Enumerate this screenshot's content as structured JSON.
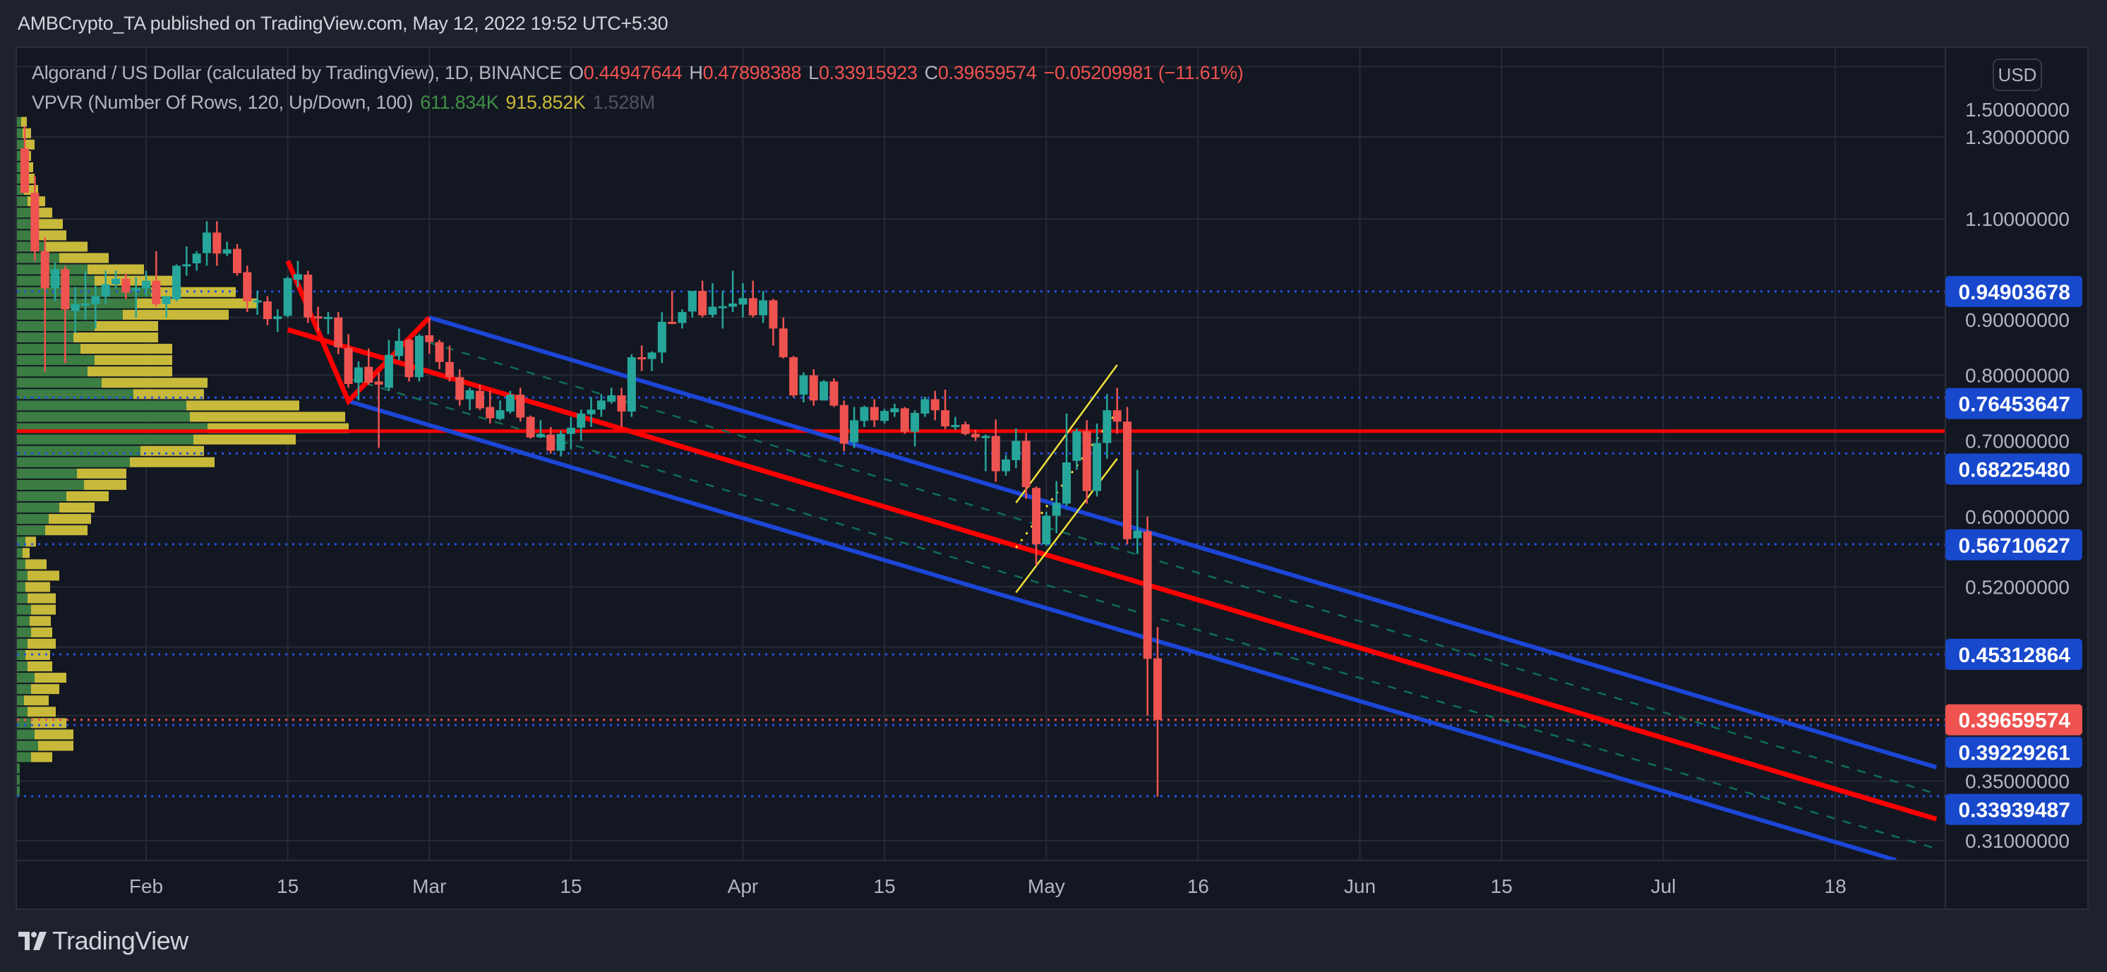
{
  "header": {
    "published": "AMBCrypto_TA published on TradingView.com, May 12, 2022 19:52 UTC+5:30"
  },
  "legend": {
    "symbol": "Algorand / US Dollar (calculated by TradingView), 1D, BINANCE",
    "o_label": "O",
    "o": "0.44947644",
    "h_label": "H",
    "h": "0.47898388",
    "l_label": "L",
    "l": "0.33915923",
    "c_label": "C",
    "c": "0.39659574",
    "change": "−0.05209981 (−11.61%)",
    "vpvr": "VPVR (Number Of Rows, 120, Up/Down, 100)",
    "vpvr_up": "611.834K",
    "vpvr_down": "915.852K",
    "vpvr_total": "1.528M"
  },
  "price_axis": {
    "currency_button": "USD"
  },
  "footer": {
    "logo": "TradingView"
  },
  "colors": {
    "background": "#131722",
    "grid": "#262a35",
    "up": "#26a69a",
    "down": "#ef5350",
    "vp_up": "#3b7d43",
    "vp_down": "#c8b93a",
    "channel": "#1c46d6",
    "median": "#ff0000",
    "inner": "#0e6e55",
    "rising_channel": "#f2e33a",
    "level": "#2453e0",
    "badge": "#1848cc",
    "badge_last": "#ef5350"
  },
  "chart_data": {
    "type": "candlestick",
    "scale": "log",
    "interval": "1D",
    "ylim": [
      0.29,
      1.56
    ],
    "xlim": [
      "2022-01-19",
      "2022-07-28"
    ],
    "y_ticks": [
      {
        "value": 1.5,
        "label": "1.50000000"
      },
      {
        "value": 1.3,
        "label": "1.30000000"
      },
      {
        "value": 1.1,
        "label": "1.10000000"
      },
      {
        "value": 0.9,
        "label": "0.90000000"
      },
      {
        "value": 0.8,
        "label": "0.80000000"
      },
      {
        "value": 0.7,
        "label": "0.70000000"
      },
      {
        "value": 0.6,
        "label": "0.60000000"
      },
      {
        "value": 0.52,
        "label": "0.52000000"
      },
      {
        "value": 0.35,
        "label": "0.35000000"
      },
      {
        "value": 0.31,
        "label": "0.31000000"
      }
    ],
    "y_grid_extra": [
      0.46,
      0.4
    ],
    "x_ticks": [
      {
        "date": "2022-02-01",
        "label": "Feb"
      },
      {
        "date": "2022-02-15",
        "label": "15"
      },
      {
        "date": "2022-03-01",
        "label": "Mar"
      },
      {
        "date": "2022-03-15",
        "label": "15"
      },
      {
        "date": "2022-04-01",
        "label": "Apr"
      },
      {
        "date": "2022-04-15",
        "label": "15"
      },
      {
        "date": "2022-05-01",
        "label": "May"
      },
      {
        "date": "2022-05-16",
        "label": "16"
      },
      {
        "date": "2022-06-01",
        "label": "Jun"
      },
      {
        "date": "2022-06-15",
        "label": "15"
      },
      {
        "date": "2022-07-01",
        "label": "Jul"
      },
      {
        "date": "2022-07-18",
        "label": "18"
      }
    ],
    "candles_columns": [
      "date",
      "open",
      "high",
      "low",
      "close"
    ],
    "candles": [
      [
        "2022-01-20",
        1.27,
        1.33,
        1.16,
        1.16
      ],
      [
        "2022-01-21",
        1.16,
        1.2,
        1.01,
        1.03
      ],
      [
        "2022-01-22",
        1.03,
        1.06,
        0.806,
        0.955
      ],
      [
        "2022-01-23",
        0.955,
        1.006,
        0.93,
        0.993
      ],
      [
        "2022-01-24",
        0.993,
        1.0,
        0.82,
        0.915
      ],
      [
        "2022-01-25",
        0.912,
        0.958,
        0.872,
        0.925
      ],
      [
        "2022-01-26",
        0.922,
        0.99,
        0.895,
        0.926
      ],
      [
        "2022-01-27",
        0.925,
        0.96,
        0.88,
        0.94
      ],
      [
        "2022-01-28",
        0.939,
        0.99,
        0.925,
        0.963
      ],
      [
        "2022-01-29",
        0.963,
        0.99,
        0.955,
        0.974
      ],
      [
        "2022-01-30",
        0.974,
        0.985,
        0.935,
        0.947
      ],
      [
        "2022-01-31",
        0.952,
        0.977,
        0.9,
        0.955
      ],
      [
        "2022-02-01",
        0.955,
        0.99,
        0.94,
        0.97
      ],
      [
        "2022-02-02",
        0.97,
        1.03,
        0.92,
        0.925
      ],
      [
        "2022-02-03",
        0.925,
        0.94,
        0.9,
        0.94
      ],
      [
        "2022-02-04",
        0.934,
        1.003,
        0.93,
        1.0
      ],
      [
        "2022-02-05",
        1.0,
        1.04,
        0.98,
        1.003
      ],
      [
        "2022-02-06",
        1.005,
        1.03,
        0.99,
        1.025
      ],
      [
        "2022-02-07",
        1.026,
        1.095,
        1.0,
        1.07
      ],
      [
        "2022-02-08",
        1.07,
        1.095,
        1.0,
        1.025
      ],
      [
        "2022-02-09",
        1.025,
        1.05,
        1.02,
        1.034
      ],
      [
        "2022-02-10",
        1.035,
        1.045,
        0.98,
        0.985
      ],
      [
        "2022-02-11",
        0.987,
        1.0,
        0.91,
        0.93
      ],
      [
        "2022-02-12",
        0.928,
        0.95,
        0.905,
        0.932
      ],
      [
        "2022-02-13",
        0.93,
        0.94,
        0.886,
        0.897
      ],
      [
        "2022-02-14",
        0.897,
        0.915,
        0.874,
        0.902
      ],
      [
        "2022-02-15",
        0.903,
        0.978,
        0.9,
        0.975
      ],
      [
        "2022-02-16",
        0.972,
        1.01,
        0.957,
        0.983
      ],
      [
        "2022-02-17",
        0.982,
        0.99,
        0.89,
        0.9
      ],
      [
        "2022-02-18",
        0.902,
        0.92,
        0.875,
        0.899
      ],
      [
        "2022-02-19",
        0.898,
        0.91,
        0.87,
        0.901
      ],
      [
        "2022-02-20",
        0.9,
        0.91,
        0.835,
        0.847
      ],
      [
        "2022-02-21",
        0.846,
        0.87,
        0.78,
        0.786
      ],
      [
        "2022-02-22",
        0.788,
        0.823,
        0.76,
        0.813
      ],
      [
        "2022-02-23",
        0.814,
        0.845,
        0.785,
        0.788
      ],
      [
        "2022-02-24",
        0.79,
        0.805,
        0.69,
        0.785
      ],
      [
        "2022-02-25",
        0.78,
        0.86,
        0.775,
        0.834
      ],
      [
        "2022-02-26",
        0.832,
        0.88,
        0.825,
        0.858
      ],
      [
        "2022-02-27",
        0.86,
        0.862,
        0.79,
        0.797
      ],
      [
        "2022-02-28",
        0.797,
        0.87,
        0.79,
        0.867
      ],
      [
        "2022-03-01",
        0.868,
        0.9,
        0.836,
        0.856
      ],
      [
        "2022-03-02",
        0.856,
        0.86,
        0.81,
        0.822
      ],
      [
        "2022-03-03",
        0.822,
        0.85,
        0.79,
        0.797
      ],
      [
        "2022-03-04",
        0.797,
        0.81,
        0.752,
        0.761
      ],
      [
        "2022-03-05",
        0.762,
        0.78,
        0.745,
        0.776
      ],
      [
        "2022-03-06",
        0.775,
        0.785,
        0.745,
        0.748
      ],
      [
        "2022-03-07",
        0.75,
        0.775,
        0.725,
        0.733
      ],
      [
        "2022-03-08",
        0.732,
        0.76,
        0.73,
        0.745
      ],
      [
        "2022-03-09",
        0.743,
        0.775,
        0.74,
        0.769
      ],
      [
        "2022-03-10",
        0.769,
        0.78,
        0.728,
        0.734
      ],
      [
        "2022-03-11",
        0.735,
        0.737,
        0.703,
        0.705
      ],
      [
        "2022-03-12",
        0.705,
        0.73,
        0.704,
        0.71
      ],
      [
        "2022-03-13",
        0.709,
        0.72,
        0.682,
        0.686
      ],
      [
        "2022-03-14",
        0.686,
        0.715,
        0.678,
        0.71
      ],
      [
        "2022-03-15",
        0.71,
        0.735,
        0.688,
        0.719
      ],
      [
        "2022-03-16",
        0.719,
        0.746,
        0.7,
        0.74
      ],
      [
        "2022-03-17",
        0.739,
        0.765,
        0.72,
        0.746
      ],
      [
        "2022-03-18",
        0.746,
        0.77,
        0.735,
        0.76
      ],
      [
        "2022-03-19",
        0.758,
        0.78,
        0.755,
        0.768
      ],
      [
        "2022-03-20",
        0.768,
        0.78,
        0.72,
        0.743
      ],
      [
        "2022-03-21",
        0.743,
        0.835,
        0.735,
        0.83
      ],
      [
        "2022-03-22",
        0.83,
        0.85,
        0.807,
        0.828
      ],
      [
        "2022-03-23",
        0.827,
        0.84,
        0.807,
        0.838
      ],
      [
        "2022-03-24",
        0.838,
        0.91,
        0.82,
        0.892
      ],
      [
        "2022-03-25",
        0.892,
        0.95,
        0.888,
        0.89
      ],
      [
        "2022-03-26",
        0.89,
        0.915,
        0.88,
        0.91
      ],
      [
        "2022-03-27",
        0.911,
        0.95,
        0.9,
        0.95
      ],
      [
        "2022-03-28",
        0.95,
        0.97,
        0.9,
        0.904
      ],
      [
        "2022-03-29",
        0.905,
        0.965,
        0.9,
        0.92
      ],
      [
        "2022-03-30",
        0.919,
        0.95,
        0.88,
        0.921
      ],
      [
        "2022-03-31",
        0.92,
        0.99,
        0.91,
        0.926
      ],
      [
        "2022-04-01",
        0.924,
        0.965,
        0.9,
        0.936
      ],
      [
        "2022-04-02",
        0.936,
        0.97,
        0.9,
        0.904
      ],
      [
        "2022-04-03",
        0.904,
        0.95,
        0.89,
        0.932
      ],
      [
        "2022-04-04",
        0.932,
        0.935,
        0.85,
        0.88
      ],
      [
        "2022-04-05",
        0.88,
        0.9,
        0.828,
        0.83
      ],
      [
        "2022-04-06",
        0.83,
        0.832,
        0.765,
        0.768
      ],
      [
        "2022-04-07",
        0.769,
        0.805,
        0.757,
        0.8
      ],
      [
        "2022-04-08",
        0.8,
        0.81,
        0.752,
        0.76
      ],
      [
        "2022-04-09",
        0.76,
        0.792,
        0.76,
        0.79
      ],
      [
        "2022-04-10",
        0.79,
        0.795,
        0.75,
        0.752
      ],
      [
        "2022-04-11",
        0.753,
        0.76,
        0.685,
        0.696
      ],
      [
        "2022-04-12",
        0.698,
        0.75,
        0.69,
        0.73
      ],
      [
        "2022-04-13",
        0.729,
        0.752,
        0.72,
        0.75
      ],
      [
        "2022-04-14",
        0.75,
        0.762,
        0.72,
        0.73
      ],
      [
        "2022-04-15",
        0.729,
        0.747,
        0.725,
        0.744
      ],
      [
        "2022-04-16",
        0.742,
        0.755,
        0.735,
        0.748
      ],
      [
        "2022-04-17",
        0.748,
        0.75,
        0.71,
        0.713
      ],
      [
        "2022-04-18",
        0.713,
        0.745,
        0.692,
        0.741
      ],
      [
        "2022-04-19",
        0.74,
        0.766,
        0.735,
        0.762
      ],
      [
        "2022-04-20",
        0.762,
        0.775,
        0.73,
        0.745
      ],
      [
        "2022-04-21",
        0.745,
        0.777,
        0.717,
        0.721
      ],
      [
        "2022-04-22",
        0.722,
        0.735,
        0.716,
        0.723
      ],
      [
        "2022-04-23",
        0.724,
        0.728,
        0.708,
        0.71
      ],
      [
        "2022-04-24",
        0.71,
        0.716,
        0.7,
        0.705
      ],
      [
        "2022-04-25",
        0.706,
        0.709,
        0.658,
        0.707
      ],
      [
        "2022-04-26",
        0.707,
        0.731,
        0.644,
        0.658
      ],
      [
        "2022-04-27",
        0.658,
        0.68,
        0.652,
        0.674
      ],
      [
        "2022-04-28",
        0.673,
        0.718,
        0.662,
        0.7
      ],
      [
        "2022-04-29",
        0.7,
        0.712,
        0.622,
        0.637
      ],
      [
        "2022-04-30",
        0.636,
        0.638,
        0.543,
        0.567
      ],
      [
        "2022-05-01",
        0.567,
        0.606,
        0.565,
        0.601
      ],
      [
        "2022-05-02",
        0.601,
        0.645,
        0.58,
        0.617
      ],
      [
        "2022-05-03",
        0.616,
        0.74,
        0.613,
        0.67
      ],
      [
        "2022-05-04",
        0.672,
        0.718,
        0.66,
        0.714
      ],
      [
        "2022-05-05",
        0.714,
        0.73,
        0.616,
        0.632
      ],
      [
        "2022-05-06",
        0.632,
        0.725,
        0.625,
        0.697
      ],
      [
        "2022-05-07",
        0.697,
        0.77,
        0.675,
        0.745
      ],
      [
        "2022-05-08",
        0.745,
        0.78,
        0.71,
        0.728
      ],
      [
        "2022-05-09",
        0.728,
        0.75,
        0.567,
        0.573
      ],
      [
        "2022-05-10",
        0.574,
        0.66,
        0.556,
        0.583
      ],
      [
        "2022-05-11",
        0.582,
        0.6,
        0.4,
        0.449
      ],
      [
        "2022-05-12",
        0.44947644,
        0.47898388,
        0.33915923,
        0.39659574
      ]
    ],
    "volume_profile": {
      "rows_shown": 60,
      "price_low": 0.339,
      "price_high": 1.356,
      "up": [
        4,
        4,
        4,
        20,
        30,
        25,
        20,
        15,
        10,
        20,
        25,
        15,
        12,
        15,
        20,
        18,
        20,
        15,
        12,
        15,
        12,
        8,
        12,
        40,
        45,
        60,
        70,
        95,
        85,
        160,
        175,
        250,
        270,
        245,
        240,
        165,
        120,
        100,
        110,
        90,
        80,
        110,
        150,
        170,
        190,
        110,
        100,
        60,
        40,
        30,
        25,
        20,
        15,
        10,
        10,
        8,
        8,
        10,
        8,
        6
      ],
      "down": [
        0,
        0,
        0,
        30,
        50,
        55,
        50,
        40,
        35,
        40,
        45,
        35,
        35,
        40,
        30,
        30,
        35,
        40,
        35,
        45,
        30,
        10,
        15,
        60,
        60,
        50,
        60,
        60,
        70,
        120,
        90,
        145,
        200,
        220,
        160,
        100,
        150,
        120,
        110,
        130,
        120,
        90,
        150,
        170,
        120,
        120,
        80,
        70,
        60,
        40,
        40,
        30,
        25,
        20,
        15,
        15,
        12,
        15,
        12,
        8
      ]
    },
    "drawings": {
      "pitchfork_handle": [
        [
          "2022-02-15",
          1.01
        ],
        [
          "2022-02-21",
          0.759
        ],
        [
          "2022-03-01",
          0.9
        ]
      ],
      "median_line": [
        [
          "2022-02-15",
          0.878
        ],
        [
          "2022-07-28",
          0.324
        ]
      ],
      "upper_channel": [
        [
          "2022-03-01",
          0.9
        ],
        [
          "2022-07-28",
          0.36
        ]
      ],
      "lower_channel": [
        [
          "2022-02-21",
          0.759
        ],
        [
          "2022-07-24",
          0.298
        ]
      ],
      "inner_upper_dashed": [
        [
          "2022-03-01",
          0.855
        ],
        [
          "2022-07-28",
          0.341
        ]
      ],
      "inner_lower_dashed": [
        [
          "2022-02-21",
          0.795
        ],
        [
          "2022-07-28",
          0.305
        ]
      ],
      "rising_channel_upper": [
        [
          "2022-04-28",
          0.617
        ],
        [
          "2022-05-08",
          0.817
        ]
      ],
      "rising_channel_lower": [
        [
          "2022-04-28",
          0.514
        ],
        [
          "2022-05-08",
          0.675
        ]
      ],
      "rising_channel_mid": [
        [
          "2022-04-28",
          0.563
        ],
        [
          "2022-05-08",
          0.743
        ]
      ],
      "horizontal_red": 0.714
    },
    "price_levels": [
      {
        "label": "0.94903678",
        "kind": "level"
      },
      {
        "label": "0.76453647",
        "kind": "level"
      },
      {
        "label": "0.68225480",
        "kind": "level"
      },
      {
        "label": "0.56710627",
        "kind": "level"
      },
      {
        "label": "0.45312864",
        "kind": "level"
      },
      {
        "label": "0.39659574",
        "kind": "last"
      },
      {
        "label": "0.39229261",
        "kind": "level"
      },
      {
        "label": "0.33939487",
        "kind": "level"
      }
    ]
  }
}
